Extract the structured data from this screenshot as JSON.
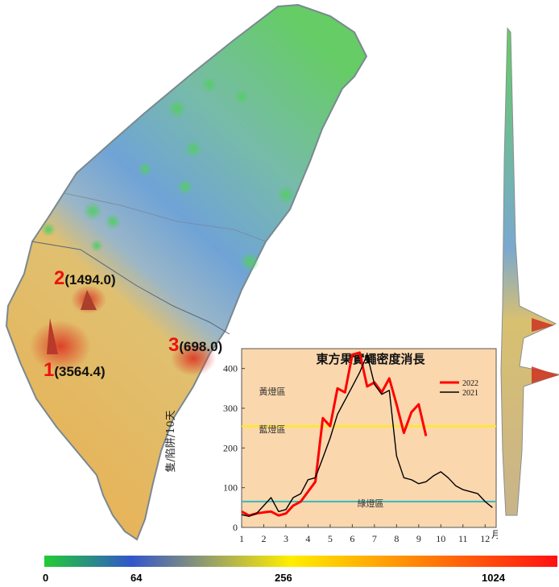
{
  "map": {
    "hotspots": [
      {
        "rank": "1",
        "value": "(3564.4)"
      },
      {
        "rank": "2",
        "value": "(1494.0)"
      },
      {
        "rank": "3",
        "value": "(698.0)"
      }
    ]
  },
  "legend": {
    "ticks": [
      "0",
      "64",
      "256",
      "1024"
    ],
    "colors": [
      "#22cc33",
      "#3355cc",
      "#ffee00",
      "#ff1111"
    ]
  },
  "chart_data": {
    "type": "line",
    "title": "東方果實蠅密度消長",
    "ylabel": "隻/陷阱/10天",
    "xlabel": "月",
    "xlim": [
      1,
      12.5
    ],
    "ylim": [
      0,
      450
    ],
    "xticks": [
      "1",
      "2",
      "3",
      "4",
      "5",
      "6",
      "7",
      "8",
      "9",
      "10",
      "11",
      "12"
    ],
    "yticks": [
      "0",
      "100",
      "200",
      "300",
      "400"
    ],
    "zones": [
      {
        "name": "黃燈區",
        "threshold": null
      },
      {
        "name": "藍燈區",
        "threshold": 255,
        "color": "#ffee00"
      },
      {
        "name": "綠燈區",
        "threshold": 65,
        "color": "#33bbbb"
      }
    ],
    "series": [
      {
        "name": "2022",
        "color": "#ff0000",
        "x": [
          1.0,
          1.33,
          1.67,
          2.0,
          2.33,
          2.67,
          3.0,
          3.33,
          3.67,
          4.0,
          4.33,
          4.67,
          5.0,
          5.33,
          5.67,
          6.0,
          6.33,
          6.67,
          7.0,
          7.33,
          7.67,
          8.0,
          8.33,
          8.67,
          9.0,
          9.33
        ],
        "values": [
          40,
          30,
          35,
          38,
          40,
          30,
          35,
          55,
          65,
          90,
          115,
          275,
          255,
          350,
          340,
          435,
          440,
          355,
          365,
          340,
          375,
          310,
          238,
          290,
          310,
          230
        ]
      },
      {
        "name": "2021",
        "color": "#000000",
        "x": [
          1.0,
          1.33,
          1.67,
          2.0,
          2.33,
          2.67,
          3.0,
          3.33,
          3.67,
          4.0,
          4.33,
          4.67,
          5.0,
          5.33,
          5.67,
          6.0,
          6.33,
          6.67,
          7.0,
          7.33,
          7.67,
          8.0,
          8.33,
          8.67,
          9.0,
          9.33,
          9.67,
          10.0,
          10.33,
          10.67,
          11.0,
          11.33,
          11.67,
          12.0,
          12.33
        ],
        "values": [
          32,
          28,
          35,
          55,
          75,
          40,
          45,
          75,
          85,
          120,
          125,
          175,
          225,
          285,
          320,
          355,
          390,
          435,
          360,
          335,
          345,
          180,
          125,
          120,
          110,
          115,
          130,
          140,
          125,
          105,
          95,
          90,
          85,
          65,
          50
        ]
      }
    ]
  }
}
